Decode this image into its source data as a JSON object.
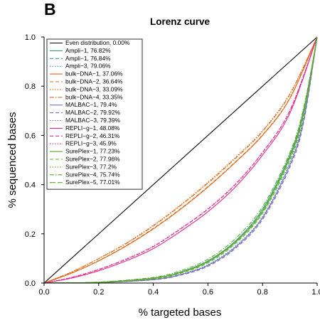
{
  "panel_label": "B",
  "chart_data": {
    "type": "line",
    "title": "Lorenz curve",
    "xlabel": "% targeted bases",
    "ylabel": "% sequenced bases",
    "xlim": [
      0,
      1
    ],
    "ylim": [
      0,
      1
    ],
    "x_ticks": [
      "0.0",
      "0.2",
      "0.4",
      "0.6",
      "0.8",
      "1.0"
    ],
    "y_ticks": [
      "0.0",
      "0.2",
      "0.4",
      "0.6",
      "0.8",
      "1.0"
    ],
    "grid": false,
    "legend_position": "top-left",
    "colors": {
      "even": "#000000",
      "ampli": "#3a9a8a",
      "bulk": "#e06a1a",
      "malbac": "#7b6fc0",
      "repli": "#e0288c",
      "sureplex": "#5cab2a"
    },
    "series": [
      {
        "name": "Even distribution, 0.00%",
        "group": "even",
        "dash": "solid",
        "x": [
          0,
          1
        ],
        "y": [
          0,
          1
        ]
      },
      {
        "name": "Ampli−1, 76.82%",
        "group": "ampli",
        "dash": "solid",
        "x": [
          0,
          0.2,
          0.4,
          0.5,
          0.6,
          0.7,
          0.8,
          0.9,
          0.95,
          1.0
        ],
        "y": [
          0,
          0.003,
          0.02,
          0.045,
          0.09,
          0.17,
          0.3,
          0.52,
          0.7,
          1.0
        ]
      },
      {
        "name": "Ampli−1, 76.84%",
        "group": "ampli",
        "dash": "dashed",
        "x": [
          0,
          0.2,
          0.4,
          0.5,
          0.6,
          0.7,
          0.8,
          0.9,
          0.95,
          1.0
        ],
        "y": [
          0,
          0.003,
          0.02,
          0.045,
          0.09,
          0.17,
          0.3,
          0.52,
          0.7,
          1.0
        ]
      },
      {
        "name": "Ampli−3, 79.06%",
        "group": "ampli",
        "dash": "dotted",
        "x": [
          0,
          0.2,
          0.4,
          0.5,
          0.6,
          0.7,
          0.8,
          0.9,
          0.95,
          1.0
        ],
        "y": [
          0,
          0.002,
          0.015,
          0.036,
          0.075,
          0.15,
          0.27,
          0.49,
          0.67,
          1.0
        ]
      },
      {
        "name": "bulk−DNA−1, 37.06%",
        "group": "bulk",
        "dash": "solid",
        "x": [
          0,
          0.1,
          0.2,
          0.3,
          0.4,
          0.5,
          0.6,
          0.7,
          0.8,
          0.9,
          1.0
        ],
        "y": [
          0,
          0.04,
          0.09,
          0.15,
          0.22,
          0.3,
          0.39,
          0.49,
          0.6,
          0.75,
          1.0
        ]
      },
      {
        "name": "bulk−DNA−2, 36.64%",
        "group": "bulk",
        "dash": "dashed",
        "x": [
          0,
          0.1,
          0.2,
          0.3,
          0.4,
          0.5,
          0.6,
          0.7,
          0.8,
          0.9,
          1.0
        ],
        "y": [
          0,
          0.041,
          0.091,
          0.152,
          0.222,
          0.302,
          0.392,
          0.492,
          0.602,
          0.752,
          1.0
        ]
      },
      {
        "name": "bulk−DNA−3, 33.09%",
        "group": "bulk",
        "dash": "dotted",
        "x": [
          0,
          0.1,
          0.2,
          0.3,
          0.4,
          0.5,
          0.6,
          0.7,
          0.8,
          0.9,
          1.0
        ],
        "y": [
          0,
          0.045,
          0.1,
          0.162,
          0.235,
          0.318,
          0.41,
          0.51,
          0.62,
          0.77,
          1.0
        ]
      },
      {
        "name": "bulk−DNA−4, 33.35%",
        "group": "bulk",
        "dash": "dashdot",
        "x": [
          0,
          0.1,
          0.2,
          0.3,
          0.4,
          0.5,
          0.6,
          0.7,
          0.8,
          0.9,
          1.0
        ],
        "y": [
          0,
          0.044,
          0.099,
          0.16,
          0.232,
          0.315,
          0.406,
          0.506,
          0.616,
          0.766,
          1.0
        ]
      },
      {
        "name": "MALBAC−1, 79.4%",
        "group": "malbac",
        "dash": "solid",
        "x": [
          0,
          0.2,
          0.4,
          0.5,
          0.6,
          0.7,
          0.8,
          0.9,
          0.95,
          1.0
        ],
        "y": [
          0,
          0.002,
          0.014,
          0.034,
          0.072,
          0.145,
          0.265,
          0.48,
          0.66,
          1.0
        ]
      },
      {
        "name": "MALBAC−2, 79.92%",
        "group": "malbac",
        "dash": "dashed",
        "x": [
          0,
          0.2,
          0.4,
          0.5,
          0.6,
          0.7,
          0.8,
          0.9,
          0.95,
          1.0
        ],
        "y": [
          0,
          0.002,
          0.013,
          0.032,
          0.068,
          0.14,
          0.258,
          0.47,
          0.65,
          1.0
        ]
      },
      {
        "name": "MALBAC−3, 79.39%",
        "group": "malbac",
        "dash": "dotted",
        "x": [
          0,
          0.2,
          0.4,
          0.5,
          0.6,
          0.7,
          0.8,
          0.9,
          0.95,
          1.0
        ],
        "y": [
          0,
          0.002,
          0.014,
          0.034,
          0.072,
          0.145,
          0.265,
          0.48,
          0.66,
          1.0
        ]
      },
      {
        "name": "REPLI−g−1, 48.08%",
        "group": "repli",
        "dash": "solid",
        "x": [
          0,
          0.1,
          0.2,
          0.3,
          0.4,
          0.5,
          0.6,
          0.7,
          0.8,
          0.9,
          1.0
        ],
        "y": [
          0,
          0.02,
          0.05,
          0.09,
          0.14,
          0.21,
          0.29,
          0.39,
          0.52,
          0.69,
          1.0
        ]
      },
      {
        "name": "REPLI−g−2, 46.31%",
        "group": "repli",
        "dash": "dashed",
        "x": [
          0,
          0.1,
          0.2,
          0.3,
          0.4,
          0.5,
          0.6,
          0.7,
          0.8,
          0.9,
          1.0
        ],
        "y": [
          0,
          0.022,
          0.055,
          0.096,
          0.148,
          0.22,
          0.3,
          0.4,
          0.53,
          0.7,
          1.0
        ]
      },
      {
        "name": "REPLI−g−3, 45.9%",
        "group": "repli",
        "dash": "dotted",
        "x": [
          0,
          0.1,
          0.2,
          0.3,
          0.4,
          0.5,
          0.6,
          0.7,
          0.8,
          0.9,
          1.0
        ],
        "y": [
          0,
          0.023,
          0.056,
          0.098,
          0.15,
          0.222,
          0.302,
          0.402,
          0.532,
          0.702,
          1.0
        ]
      },
      {
        "name": "SurePlex−1, 77.23%",
        "group": "sureplex",
        "dash": "solid",
        "x": [
          0,
          0.2,
          0.4,
          0.5,
          0.6,
          0.7,
          0.8,
          0.9,
          0.95,
          1.0
        ],
        "y": [
          0,
          0.003,
          0.019,
          0.043,
          0.086,
          0.165,
          0.29,
          0.51,
          0.69,
          1.0
        ]
      },
      {
        "name": "SurePlex−2, 77.96%",
        "group": "sureplex",
        "dash": "dashed",
        "x": [
          0,
          0.2,
          0.4,
          0.5,
          0.6,
          0.7,
          0.8,
          0.9,
          0.95,
          1.0
        ],
        "y": [
          0,
          0.003,
          0.017,
          0.04,
          0.082,
          0.16,
          0.283,
          0.5,
          0.68,
          1.0
        ]
      },
      {
        "name": "SurePlex−3, 77.2%",
        "group": "sureplex",
        "dash": "dotted",
        "x": [
          0,
          0.2,
          0.4,
          0.5,
          0.6,
          0.7,
          0.8,
          0.9,
          0.95,
          1.0
        ],
        "y": [
          0,
          0.003,
          0.019,
          0.043,
          0.086,
          0.165,
          0.29,
          0.51,
          0.69,
          1.0
        ]
      },
      {
        "name": "SurePlex−4, 75.74%",
        "group": "sureplex",
        "dash": "dashdot",
        "x": [
          0,
          0.2,
          0.4,
          0.5,
          0.6,
          0.7,
          0.8,
          0.9,
          0.95,
          1.0
        ],
        "y": [
          0,
          0.004,
          0.023,
          0.05,
          0.097,
          0.18,
          0.31,
          0.53,
          0.71,
          1.0
        ]
      },
      {
        "name": "SurePlex−5, 77.01%",
        "group": "sureplex",
        "dash": "longdash",
        "x": [
          0,
          0.2,
          0.4,
          0.5,
          0.6,
          0.7,
          0.8,
          0.9,
          0.95,
          1.0
        ],
        "y": [
          0,
          0.003,
          0.02,
          0.044,
          0.088,
          0.167,
          0.293,
          0.513,
          0.693,
          1.0
        ]
      }
    ]
  }
}
